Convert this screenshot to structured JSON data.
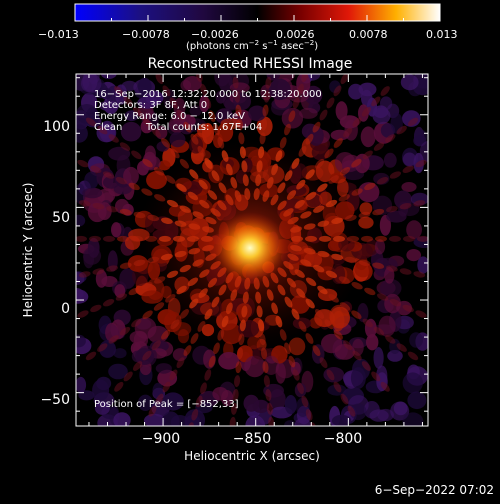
{
  "colorbar": {
    "tick_labels": [
      "−0.013",
      "−0.0078",
      "−0.0026",
      "0.0026",
      "0.0078",
      "0.013"
    ],
    "range": [
      -0.013,
      0.013
    ],
    "unit_main": "(photons cm",
    "unit_exp1": "−2",
    "unit_s": " s",
    "unit_exp2": "−1",
    "unit_asec": " asec",
    "unit_exp3": "−2",
    "unit_close": ")",
    "colormap": "black-purple-red-yellow-white (negative: blue)"
  },
  "chart_data": {
    "type": "heatmap",
    "title": "Reconstructed RHESSI Image",
    "xlabel": "Heliocentric X (arcsec)",
    "ylabel": "Heliocentric Y (arcsec)",
    "x_ticks": [
      "−900",
      "−850",
      "−800"
    ],
    "y_ticks": [
      "−50",
      "0",
      "50",
      "100"
    ],
    "xlim": [
      -947,
      -757
    ],
    "ylim": [
      -68,
      122
    ],
    "source_peak": {
      "x": -852,
      "y": 33
    },
    "annotations": [
      "16−Sep−2016 12:32:20.000 to 12:38:20.000",
      "Detectors: 3F 8F, Att 0",
      "Energy Range: 6.0 − 12.0 keV",
      "Clean",
      "Total counts: 1.67E+04",
      "Position of Peak = [−852,33]"
    ]
  },
  "footer": {
    "date": "6−Sep−2022 07:02"
  }
}
